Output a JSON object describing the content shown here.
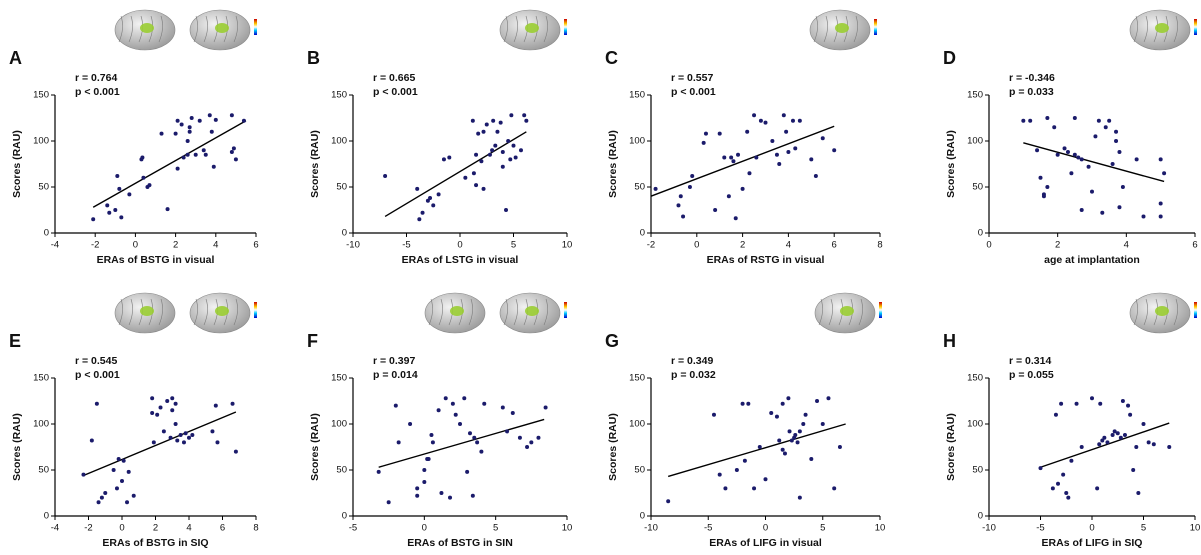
{
  "chart_data": [
    {
      "type": "scatter",
      "panel": "A",
      "annotations": [
        "r = 0.764",
        "p < 0.001"
      ],
      "x_label": "ERAs of BSTG in visual",
      "y_label": "Scores (RAU)",
      "xlim": [
        -4,
        6
      ],
      "ylim": [
        0,
        150
      ],
      "xticks": [
        -4,
        -2,
        0,
        2,
        4,
        6
      ],
      "yticks": [
        0,
        50,
        100,
        150
      ],
      "series": [
        {
          "color": "#1b1b6b",
          "x": [
            -2.1,
            -1.4,
            -1.3,
            -1,
            -0.8,
            -0.7,
            -0.9,
            -0.3,
            0.3,
            0.35,
            0.4,
            0.6,
            0.7,
            1.3,
            1.6,
            2,
            2.1,
            2.1,
            2.3,
            2.4,
            2.6,
            2.6,
            2.7,
            2.7,
            2.8,
            3,
            3.2,
            3.4,
            3.5,
            3.7,
            3.8,
            4,
            3.9,
            4.8,
            4.8,
            4.9,
            5,
            5.4
          ],
          "values": [
            15,
            30,
            22,
            25,
            48,
            17,
            62,
            42,
            80,
            82,
            60,
            50,
            52,
            108,
            26,
            108,
            122,
            70,
            118,
            82,
            85,
            100,
            110,
            115,
            125,
            85,
            122,
            90,
            85,
            128,
            110,
            123,
            72,
            88,
            128,
            92,
            80,
            122
          ]
        }
      ],
      "fit_line": {
        "x": [
          -2.1,
          5.5
        ],
        "y": [
          28,
          122
        ]
      }
    },
    {
      "type": "scatter",
      "panel": "B",
      "annotations": [
        "r = 0.665",
        "p < 0.001"
      ],
      "x_label": "ERAs of LSTG in visual",
      "y_label": "Scores (RAU)",
      "xlim": [
        -10,
        10
      ],
      "ylim": [
        0,
        150
      ],
      "xticks": [
        -10,
        -5,
        0,
        5,
        10
      ],
      "yticks": [
        0,
        50,
        100,
        150
      ],
      "series": [
        {
          "color": "#1b1b6b",
          "x": [
            -7,
            -4,
            -3.8,
            -3.5,
            -3,
            -2.8,
            -2.5,
            -2,
            -1.5,
            -1,
            0.5,
            1.2,
            1.3,
            1.5,
            1.5,
            1.7,
            2,
            2.2,
            2.2,
            2.5,
            2.8,
            3,
            3.1,
            3.3,
            3.5,
            3.8,
            4,
            4,
            4.3,
            4.5,
            4.7,
            4.8,
            5,
            5.2,
            5.7,
            6,
            6.2
          ],
          "values": [
            62,
            48,
            15,
            22,
            35,
            38,
            30,
            42,
            80,
            82,
            60,
            122,
            65,
            85,
            52,
            108,
            78,
            48,
            110,
            118,
            85,
            90,
            122,
            95,
            110,
            120,
            88,
            72,
            25,
            100,
            80,
            128,
            95,
            82,
            90,
            128,
            122
          ]
        }
      ],
      "fit_line": {
        "x": [
          -7,
          6.2
        ],
        "y": [
          18,
          110
        ]
      }
    },
    {
      "type": "scatter",
      "panel": "C",
      "annotations": [
        "r = 0.557",
        "p < 0.001"
      ],
      "x_label": "ERAs of RSTG in visual",
      "y_label": "Scores (RAU)",
      "xlim": [
        -2,
        8
      ],
      "ylim": [
        0,
        150
      ],
      "xticks": [
        -2,
        0,
        2,
        4,
        6,
        8
      ],
      "yticks": [
        0,
        50,
        100,
        150
      ],
      "series": [
        {
          "color": "#1b1b6b",
          "x": [
            -1.8,
            -0.8,
            -0.7,
            -0.6,
            -0.3,
            -0.2,
            0.3,
            0.4,
            0.8,
            1,
            1.2,
            1.4,
            1.5,
            1.6,
            1.7,
            1.8,
            2,
            2.2,
            2.3,
            2.5,
            2.6,
            2.8,
            3,
            3.3,
            3.5,
            3.6,
            3.8,
            3.9,
            4,
            4.2,
            4.3,
            4.5,
            5,
            5.2,
            5.5,
            6
          ],
          "values": [
            48,
            30,
            40,
            18,
            50,
            62,
            98,
            108,
            25,
            108,
            82,
            40,
            82,
            78,
            16,
            85,
            48,
            110,
            65,
            128,
            82,
            122,
            120,
            100,
            85,
            75,
            128,
            110,
            88,
            122,
            92,
            122,
            80,
            62,
            103,
            90
          ]
        }
      ],
      "fit_line": {
        "x": [
          -2,
          6
        ],
        "y": [
          40,
          116
        ]
      }
    },
    {
      "type": "scatter",
      "panel": "D",
      "annotations": [
        "r = -0.346",
        "p = 0.033"
      ],
      "x_label": "age at implantation",
      "y_label": "Scores (RAU)",
      "xlim": [
        0,
        6
      ],
      "ylim": [
        0,
        150
      ],
      "xticks": [
        0,
        2,
        4,
        6
      ],
      "yticks": [
        0,
        50,
        100,
        150
      ],
      "series": [
        {
          "color": "#1b1b6b",
          "x": [
            1,
            1.2,
            1.4,
            1.5,
            1.6,
            1.6,
            1.7,
            1.7,
            1.9,
            2,
            2.2,
            2.3,
            2.4,
            2.5,
            2.5,
            2.6,
            2.7,
            2.7,
            2.9,
            3,
            3.1,
            3.2,
            3.3,
            3.4,
            3.5,
            3.6,
            3.7,
            3.7,
            3.8,
            3.8,
            3.9,
            4.3,
            4.5,
            5,
            5,
            5,
            5.1
          ],
          "values": [
            122,
            122,
            90,
            60,
            42,
            40,
            50,
            125,
            115,
            85,
            92,
            88,
            65,
            85,
            125,
            82,
            80,
            25,
            72,
            45,
            105,
            122,
            22,
            115,
            122,
            75,
            110,
            100,
            88,
            28,
            50,
            80,
            18,
            80,
            32,
            18,
            65
          ]
        }
      ],
      "fit_line": {
        "x": [
          1,
          5.1
        ],
        "y": [
          98,
          56
        ]
      }
    },
    {
      "type": "scatter",
      "panel": "E",
      "annotations": [
        "r = 0.545",
        "p < 0.001"
      ],
      "x_label": "ERAs of BSTG in SIQ",
      "y_label": "Scores (RAU)",
      "xlim": [
        -4,
        8
      ],
      "ylim": [
        0,
        150
      ],
      "xticks": [
        -4,
        -2,
        0,
        2,
        4,
        6,
        8
      ],
      "yticks": [
        0,
        50,
        100,
        150
      ],
      "series": [
        {
          "color": "#1b1b6b",
          "x": [
            -2.3,
            -1.8,
            -1.5,
            -1.4,
            -1.2,
            -1,
            -0.5,
            -0.3,
            -0.2,
            0,
            0.1,
            0.3,
            0.4,
            0.7,
            1.8,
            1.8,
            1.9,
            2.1,
            2.3,
            2.5,
            2.7,
            2.9,
            3,
            3,
            3.2,
            3.2,
            3.3,
            3.5,
            3.7,
            3.8,
            4,
            4.2,
            5.4,
            5.6,
            5.7,
            6.6,
            6.8
          ],
          "values": [
            45,
            82,
            122,
            15,
            20,
            25,
            50,
            30,
            62,
            38,
            60,
            15,
            48,
            22,
            112,
            128,
            80,
            110,
            118,
            92,
            125,
            85,
            115,
            128,
            122,
            100,
            82,
            88,
            80,
            90,
            85,
            88,
            92,
            120,
            80,
            122,
            70
          ]
        }
      ],
      "fit_line": {
        "x": [
          -2.3,
          6.8
        ],
        "y": [
          44,
          113
        ]
      }
    },
    {
      "type": "scatter",
      "panel": "F",
      "annotations": [
        "r = 0.397",
        "p = 0.014"
      ],
      "x_label": "ERAs of BSTG in SIN",
      "y_label": "Scores (RAU)",
      "xlim": [
        -5,
        10
      ],
      "ylim": [
        0,
        150
      ],
      "xticks": [
        -5,
        0,
        5,
        10
      ],
      "yticks": [
        0,
        50,
        100,
        150
      ],
      "series": [
        {
          "color": "#1b1b6b",
          "x": [
            -3.2,
            -2.5,
            -2,
            -1.8,
            -1,
            -0.5,
            -0.5,
            0,
            0,
            0.2,
            0.3,
            0.5,
            0.6,
            1,
            1.2,
            1.5,
            1.8,
            2,
            2.2,
            2.5,
            2.8,
            3,
            3.2,
            3.4,
            3.5,
            3.7,
            4,
            4.2,
            5.5,
            5.8,
            6.2,
            6.7,
            7.2,
            7.5,
            8,
            8.5
          ],
          "values": [
            48,
            15,
            120,
            80,
            100,
            30,
            22,
            50,
            37,
            62,
            62,
            88,
            80,
            115,
            25,
            128,
            20,
            122,
            110,
            100,
            128,
            48,
            90,
            22,
            85,
            80,
            70,
            122,
            118,
            92,
            112,
            85,
            75,
            80,
            85,
            118
          ]
        }
      ],
      "fit_line": {
        "x": [
          -3.2,
          8.4
        ],
        "y": [
          53,
          105
        ]
      }
    },
    {
      "type": "scatter",
      "panel": "G",
      "annotations": [
        "r = 0.349",
        "p = 0.032"
      ],
      "x_label": "ERAs of LIFG in visual",
      "y_label": "Scores (RAU)",
      "xlim": [
        -10,
        10
      ],
      "ylim": [
        0,
        150
      ],
      "xticks": [
        -10,
        -5,
        0,
        5,
        10
      ],
      "yticks": [
        0,
        50,
        100,
        150
      ],
      "series": [
        {
          "color": "#1b1b6b",
          "x": [
            -8.5,
            -4.5,
            -4,
            -3.5,
            -2.5,
            -2,
            -1.8,
            -1.5,
            -1,
            -0.5,
            0,
            0.5,
            1,
            1.2,
            1.5,
            1.5,
            1.7,
            2,
            2.1,
            2.3,
            2.5,
            2.6,
            2.8,
            3,
            3,
            3.3,
            3.5,
            4,
            4.5,
            5,
            5.5,
            6,
            6.5
          ],
          "values": [
            16,
            110,
            45,
            30,
            50,
            122,
            60,
            122,
            30,
            75,
            40,
            112,
            108,
            82,
            72,
            122,
            68,
            128,
            92,
            82,
            85,
            88,
            80,
            92,
            20,
            100,
            110,
            62,
            125,
            100,
            128,
            30,
            75
          ]
        }
      ],
      "fit_line": {
        "x": [
          -8.5,
          7
        ],
        "y": [
          43,
          100
        ]
      }
    },
    {
      "type": "scatter",
      "panel": "H",
      "annotations": [
        "r = 0.314",
        "p = 0.055"
      ],
      "x_label": "ERAs of LIFG in SIQ",
      "y_label": "Scores (RAU)",
      "xlim": [
        -10,
        10
      ],
      "ylim": [
        0,
        150
      ],
      "xticks": [
        -10,
        -5,
        0,
        5,
        10
      ],
      "yticks": [
        0,
        50,
        100,
        150
      ],
      "series": [
        {
          "color": "#1b1b6b",
          "x": [
            -5,
            -3.8,
            -3.5,
            -3.3,
            -3,
            -2.8,
            -2.5,
            -2.3,
            -2,
            -1.5,
            -1,
            0,
            0.5,
            0.7,
            0.8,
            1,
            1.2,
            1.5,
            2,
            2.2,
            2.5,
            2.8,
            3,
            3.2,
            3.5,
            3.7,
            4,
            4.3,
            4.5,
            5,
            5.5,
            6,
            7.5
          ],
          "values": [
            52,
            30,
            110,
            35,
            122,
            45,
            25,
            20,
            60,
            122,
            75,
            128,
            30,
            78,
            122,
            82,
            85,
            80,
            88,
            92,
            90,
            85,
            125,
            88,
            120,
            110,
            50,
            75,
            25,
            100,
            80,
            78,
            75
          ]
        }
      ],
      "fit_line": {
        "x": [
          -5,
          7.5
        ],
        "y": [
          53,
          101
        ]
      }
    }
  ]
}
